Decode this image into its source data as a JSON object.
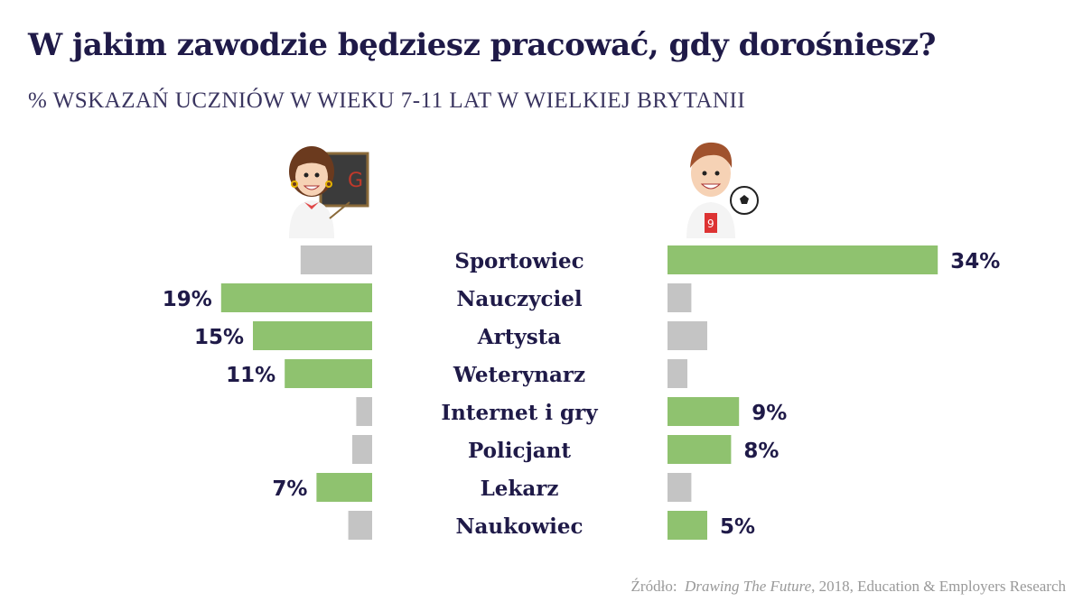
{
  "title": "W jakim zawodzie będziesz pracować, gdy dorośniesz?",
  "subtitle": "% WSKAZAŃ UCZNIÓW W WIEKU 7-11 LAT W WIELKIEJ BRYTANII",
  "source": {
    "prefix": "Źródło:",
    "work": "Drawing The Future",
    "rest": ", 2018, Education & Employers Research"
  },
  "colors": {
    "highlight": "#8fc26f",
    "other": "#c4c4c4",
    "text": "#1f1a48"
  },
  "chart_data": {
    "type": "bar",
    "title": "W jakim zawodzie będziesz pracować, gdy dorośniesz?",
    "categories": [
      "Sportowiec",
      "Nauczyciel",
      "Artysta",
      "Weterynarz",
      "Internet i gry",
      "Policjant",
      "Lekarz",
      "Naukowiec"
    ],
    "series": [
      {
        "name": "Dziewczynki",
        "side": "left",
        "values": [
          9,
          19,
          15,
          11,
          2,
          2.5,
          7,
          3
        ],
        "highlighted": [
          false,
          true,
          true,
          true,
          false,
          false,
          true,
          false
        ],
        "labels": [
          "",
          "19%",
          "15%",
          "11%",
          "",
          "",
          "7%",
          ""
        ]
      },
      {
        "name": "Chłopcy",
        "side": "right",
        "values": [
          34,
          3,
          5,
          2.5,
          9,
          8,
          3,
          5
        ],
        "highlighted": [
          true,
          false,
          false,
          false,
          true,
          true,
          false,
          true
        ],
        "labels": [
          "34%",
          "",
          "",
          "",
          "9%",
          "8%",
          "",
          "5%"
        ]
      }
    ],
    "unit": "%"
  }
}
